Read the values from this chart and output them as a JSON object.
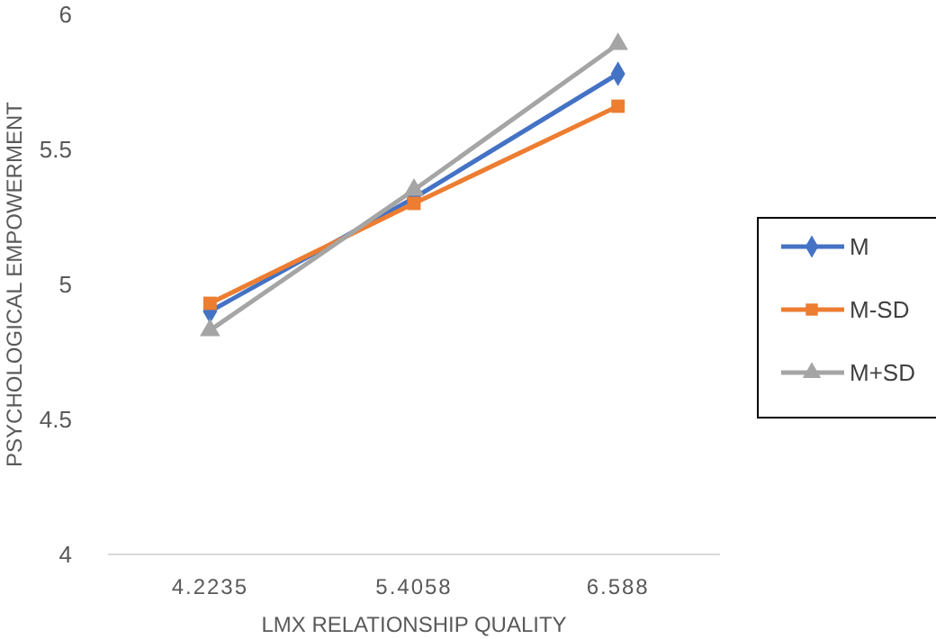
{
  "chart_data": {
    "type": "line",
    "xlabel": "LMX RELATIONSHIP QUALITY",
    "ylabel": "PSYCHOLOGICAL EMPOWERMENT",
    "categories": [
      "4.2235",
      "5.4058",
      "6.588"
    ],
    "series": [
      {
        "name": "M",
        "color": "#4472c4",
        "marker": "diamond",
        "values": [
          4.9,
          5.32,
          5.78
        ]
      },
      {
        "name": "M-SD",
        "color": "#ed7d31",
        "marker": "square",
        "values": [
          4.93,
          5.3,
          5.66
        ]
      },
      {
        "name": "M+SD",
        "color": "#a5a5a5",
        "marker": "triangle",
        "values": [
          4.83,
          5.35,
          5.89
        ]
      }
    ],
    "ylim": [
      4,
      6
    ],
    "yticks": [
      4,
      4.5,
      5,
      5.5,
      6
    ],
    "grid": false,
    "legend": "right"
  }
}
